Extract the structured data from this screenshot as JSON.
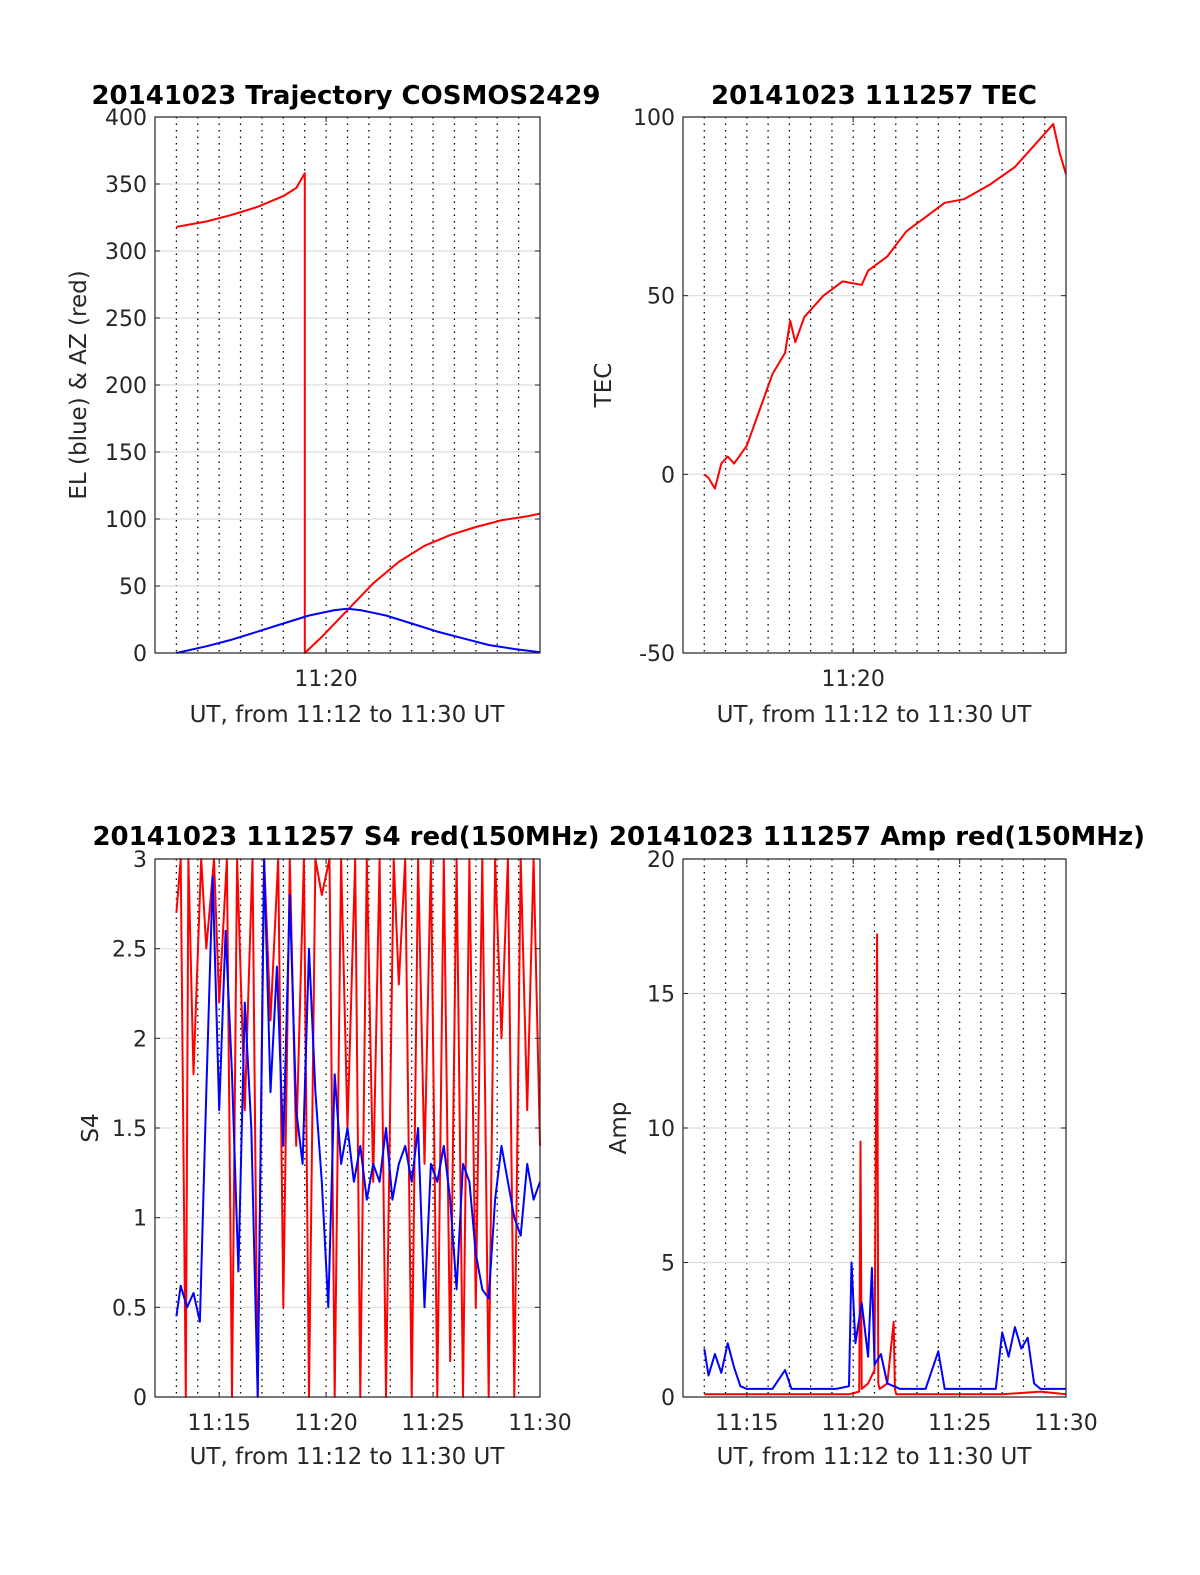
{
  "chart_data": [
    {
      "type": "line",
      "title": "20141023 Trajectory COSMOS2429",
      "xlabel": "UT, from 11:12 to 11:30 UT",
      "ylabel": "EL (blue) & AZ (red)",
      "xlim": [
        11.2,
        11.5
      ],
      "ylim": [
        0,
        400
      ],
      "x_ticks": [
        {
          "v": 11.3333,
          "label": "11:20"
        }
      ],
      "y_ticks": [
        {
          "v": 0,
          "label": "0"
        },
        {
          "v": 50,
          "label": "50"
        },
        {
          "v": 100,
          "label": "100"
        },
        {
          "v": 150,
          "label": "150"
        },
        {
          "v": 200,
          "label": "200"
        },
        {
          "v": 250,
          "label": "250"
        },
        {
          "v": 300,
          "label": "300"
        },
        {
          "v": 350,
          "label": "350"
        },
        {
          "v": 400,
          "label": "400"
        }
      ],
      "grid": true,
      "series": [
        {
          "color": "#ff0000",
          "x": [
            11.2167,
            11.24,
            11.26,
            11.28,
            11.3,
            11.31,
            11.3167,
            11.3167,
            11.33,
            11.35,
            11.37,
            11.39,
            11.41,
            11.43,
            11.45,
            11.47,
            11.49,
            11.5
          ],
          "y": [
            318,
            322,
            327,
            333,
            341,
            347,
            358,
            0,
            12,
            32,
            52,
            68,
            80,
            88,
            94,
            99,
            102,
            104
          ]
        },
        {
          "color": "#0000ff",
          "x": [
            11.2167,
            11.24,
            11.26,
            11.28,
            11.3,
            11.32,
            11.34,
            11.35,
            11.36,
            11.38,
            11.4,
            11.42,
            11.44,
            11.46,
            11.48,
            11.5
          ],
          "y": [
            0,
            5,
            10,
            16,
            22,
            28,
            32,
            33,
            32,
            28,
            22,
            16,
            11,
            6,
            3,
            0.5
          ]
        }
      ]
    },
    {
      "type": "line",
      "title": "20141023 111257 TEC",
      "xlabel": "UT, from 11:12 to 11:30 UT",
      "ylabel": "TEC",
      "xlim": [
        11.2,
        11.5
      ],
      "ylim": [
        -50,
        100
      ],
      "x_ticks": [
        {
          "v": 11.3333,
          "label": "11:20"
        }
      ],
      "y_ticks": [
        {
          "v": -50,
          "label": "-50"
        },
        {
          "v": 0,
          "label": "0"
        },
        {
          "v": 50,
          "label": "50"
        },
        {
          "v": 100,
          "label": "100"
        }
      ],
      "grid": true,
      "series": [
        {
          "color": "#ff0000",
          "x": [
            11.2167,
            11.22,
            11.225,
            11.23,
            11.235,
            11.24,
            11.25,
            11.26,
            11.27,
            11.28,
            11.284,
            11.288,
            11.295,
            11.31,
            11.325,
            11.34,
            11.345,
            11.36,
            11.375,
            11.39,
            11.405,
            11.42,
            11.44,
            11.46,
            11.475,
            11.485,
            11.49,
            11.495,
            11.5
          ],
          "y": [
            0,
            -1,
            -4,
            3,
            5,
            3,
            8,
            18,
            28,
            34,
            43,
            37,
            44,
            50,
            54,
            53,
            57,
            61,
            68,
            72,
            76,
            77,
            81,
            86,
            92,
            96,
            98,
            90,
            84
          ]
        }
      ]
    },
    {
      "type": "line",
      "title": "20141023 111257 S4 red(150MHz)",
      "xlabel": "UT, from 11:12 to 11:30 UT",
      "ylabel": "S4",
      "xlim": [
        11.2,
        11.5
      ],
      "ylim": [
        0,
        3
      ],
      "x_ticks": [
        {
          "v": 11.25,
          "label": "11:15"
        },
        {
          "v": 11.3333,
          "label": "11:20"
        },
        {
          "v": 11.4167,
          "label": "11:25"
        },
        {
          "v": 11.5,
          "label": "11:30"
        }
      ],
      "y_ticks": [
        {
          "v": 0,
          "label": "0"
        },
        {
          "v": 0.5,
          "label": "0.5"
        },
        {
          "v": 1,
          "label": "1"
        },
        {
          "v": 1.5,
          "label": "1.5"
        },
        {
          "v": 2,
          "label": "2"
        },
        {
          "v": 2.5,
          "label": "2.5"
        },
        {
          "v": 3,
          "label": "3"
        }
      ],
      "grid": true,
      "series": [
        {
          "color": "#ff0000",
          "x": [
            11.2167,
            11.22,
            11.224,
            11.226,
            11.23,
            11.236,
            11.24,
            11.246,
            11.25,
            11.256,
            11.26,
            11.264,
            11.27,
            11.276,
            11.28,
            11.285,
            11.29,
            11.296,
            11.3,
            11.305,
            11.31,
            11.316,
            11.32,
            11.325,
            11.33,
            11.336,
            11.34,
            11.345,
            11.35,
            11.356,
            11.36,
            11.365,
            11.37,
            11.375,
            11.38,
            11.386,
            11.39,
            11.395,
            11.4,
            11.405,
            11.41,
            11.415,
            11.42,
            11.425,
            11.43,
            11.435,
            11.44,
            11.445,
            11.45,
            11.455,
            11.46,
            11.465,
            11.47,
            11.475,
            11.48,
            11.485,
            11.49,
            11.495,
            11.5
          ],
          "y": [
            2.7,
            3,
            0,
            3,
            1.8,
            3,
            2.5,
            3,
            2.2,
            3,
            0,
            3,
            1.6,
            3,
            0,
            3,
            2.1,
            3,
            0.5,
            3,
            1.4,
            3,
            0,
            3,
            2.8,
            3,
            0,
            3,
            1.5,
            3,
            0,
            3,
            1.2,
            3,
            0,
            3,
            2.3,
            3,
            0,
            3,
            1.3,
            3,
            0,
            3,
            0.2,
            3,
            0,
            3,
            0.5,
            3,
            0,
            3,
            2,
            3,
            0,
            3,
            1.6,
            3,
            1.4
          ]
        },
        {
          "color": "#0000ff",
          "x": [
            11.2167,
            11.22,
            11.225,
            11.23,
            11.235,
            11.24,
            11.245,
            11.25,
            11.255,
            11.26,
            11.265,
            11.27,
            11.275,
            11.28,
            11.285,
            11.29,
            11.295,
            11.3,
            11.305,
            11.31,
            11.315,
            11.32,
            11.325,
            11.33,
            11.335,
            11.34,
            11.345,
            11.35,
            11.355,
            11.36,
            11.365,
            11.37,
            11.375,
            11.38,
            11.385,
            11.39,
            11.395,
            11.4,
            11.405,
            11.41,
            11.415,
            11.42,
            11.425,
            11.43,
            11.435,
            11.44,
            11.445,
            11.45,
            11.455,
            11.46,
            11.465,
            11.47,
            11.475,
            11.48,
            11.485,
            11.49,
            11.495,
            11.5
          ],
          "y": [
            0.45,
            0.62,
            0.5,
            0.58,
            0.42,
            1.7,
            2.9,
            1.6,
            2.6,
            1.8,
            0.7,
            2.2,
            1.5,
            0,
            3,
            1.7,
            2.4,
            1.4,
            2.8,
            1.6,
            1.3,
            2.5,
            1.7,
            1.2,
            0.5,
            1.8,
            1.3,
            1.5,
            1.2,
            1.4,
            1.1,
            1.3,
            1.2,
            1.5,
            1.1,
            1.3,
            1.4,
            1.2,
            1.5,
            0.5,
            1.3,
            1.2,
            1.4,
            1.1,
            0.6,
            1.3,
            1.2,
            0.8,
            0.6,
            0.55,
            1.1,
            1.4,
            1.2,
            1,
            0.9,
            1.3,
            1.1,
            1.2
          ]
        }
      ]
    },
    {
      "type": "line",
      "title": "20141023 111257 Amp red(150MHz)",
      "xlabel": "UT, from 11:12 to 11:30 UT",
      "ylabel": "Amp",
      "xlim": [
        11.2,
        11.5
      ],
      "ylim": [
        0,
        20
      ],
      "x_ticks": [
        {
          "v": 11.25,
          "label": "11:15"
        },
        {
          "v": 11.3333,
          "label": "11:20"
        },
        {
          "v": 11.4167,
          "label": "11:25"
        },
        {
          "v": 11.5,
          "label": "11:30"
        }
      ],
      "y_ticks": [
        {
          "v": 0,
          "label": "0"
        },
        {
          "v": 5,
          "label": "5"
        },
        {
          "v": 10,
          "label": "10"
        },
        {
          "v": 15,
          "label": "15"
        },
        {
          "v": 20,
          "label": "20"
        }
      ],
      "grid": true,
      "series": [
        {
          "color": "#ff0000",
          "x": [
            11.2167,
            11.33,
            11.338,
            11.339,
            11.34,
            11.345,
            11.35,
            11.352,
            11.353,
            11.354,
            11.36,
            11.365,
            11.366,
            11.367,
            11.4,
            11.45,
            11.48,
            11.5
          ],
          "y": [
            0.1,
            0.1,
            0.2,
            9.5,
            0.3,
            0.5,
            1,
            17.2,
            0.5,
            0.3,
            0.5,
            2.8,
            0.3,
            0.1,
            0.1,
            0.1,
            0.2,
            0.1
          ]
        },
        {
          "color": "#0000ff",
          "x": [
            11.2167,
            11.22,
            11.225,
            11.23,
            11.235,
            11.24,
            11.245,
            11.25,
            11.27,
            11.28,
            11.285,
            11.3,
            11.32,
            11.33,
            11.332,
            11.335,
            11.34,
            11.345,
            11.348,
            11.35,
            11.355,
            11.36,
            11.37,
            11.39,
            11.4,
            11.405,
            11.41,
            11.43,
            11.445,
            11.45,
            11.455,
            11.46,
            11.465,
            11.47,
            11.475,
            11.48,
            11.49,
            11.5
          ],
          "y": [
            1.8,
            0.8,
            1.6,
            0.9,
            2,
            1.1,
            0.4,
            0.3,
            0.3,
            1,
            0.3,
            0.3,
            0.3,
            0.4,
            5,
            2,
            3.5,
            1.5,
            4.8,
            1.2,
            1.6,
            0.5,
            0.3,
            0.3,
            1.7,
            0.3,
            0.3,
            0.3,
            0.3,
            2.4,
            1.5,
            2.6,
            1.8,
            2.2,
            0.5,
            0.3,
            0.3,
            0.3
          ]
        }
      ]
    }
  ]
}
